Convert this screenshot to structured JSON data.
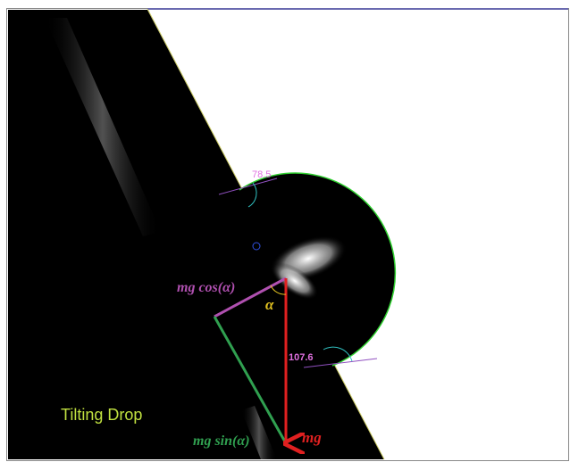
{
  "angles": {
    "left": 78.5,
    "right": 107.6
  },
  "labels": {
    "mg_cos": "mg cos(α)",
    "alpha": "α",
    "mg_sin": "mg sin(α)",
    "mg": "mg"
  },
  "caption": "Tilting Drop"
}
